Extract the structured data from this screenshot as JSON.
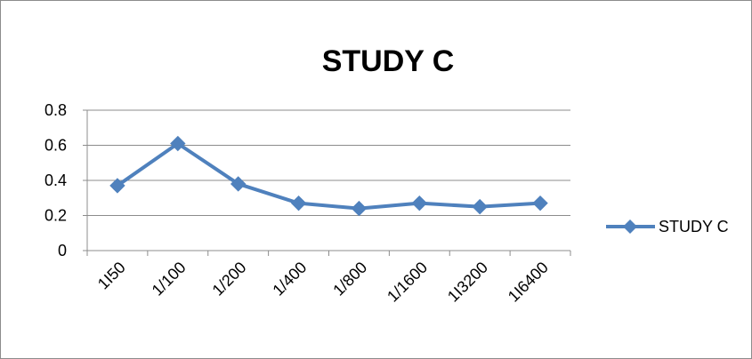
{
  "chart_data": {
    "type": "line",
    "title": "STUDY C",
    "xlabel": "",
    "ylabel": "",
    "categories": [
      "1I50",
      "1/100",
      "1/200",
      "1/400",
      "1/800",
      "1/1600",
      "1I3200",
      "1I6400"
    ],
    "series": [
      {
        "name": "STUDY C",
        "values": [
          0.37,
          0.61,
          0.38,
          0.27,
          0.24,
          0.27,
          0.25,
          0.27
        ],
        "color": "#4F81BD",
        "marker": "diamond"
      }
    ],
    "ylim": [
      0,
      0.8
    ],
    "yticks": [
      0,
      0.2,
      0.4,
      0.6,
      0.8
    ],
    "ytick_labels": [
      "0",
      "0.2",
      "0.4",
      "0.6",
      "0.8"
    ],
    "grid": "horizontal",
    "legend": "right"
  }
}
